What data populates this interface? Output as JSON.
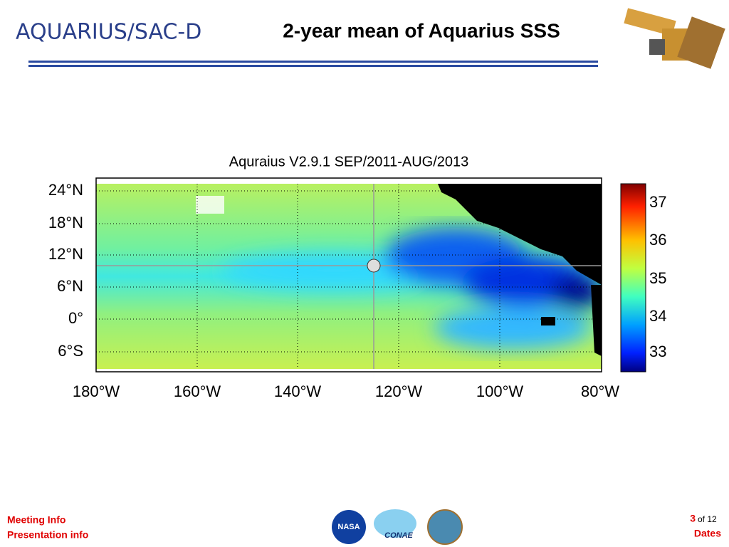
{
  "header": {
    "logo": "AQUARIUS/SAC-D",
    "title": "2-year mean of Aquarius SSS"
  },
  "map": {
    "title": "Aquraius V2.9.1 SEP/2011-AUG/2013",
    "lat_labels": [
      "24°N",
      "18°N",
      "12°N",
      "6°N",
      "0°",
      "6°S"
    ],
    "lon_labels": [
      "180°W",
      "160°W",
      "140°W",
      "120°W",
      "100°W",
      "80°W"
    ],
    "colorbar_labels": [
      "37",
      "36",
      "35",
      "34",
      "33"
    ]
  },
  "footer": {
    "left": [
      "Meeting Info",
      "Presentation info"
    ],
    "page": "3",
    "page_total": "of 12",
    "right": "Dates",
    "logos": [
      "NASA",
      "CONAE"
    ]
  }
}
